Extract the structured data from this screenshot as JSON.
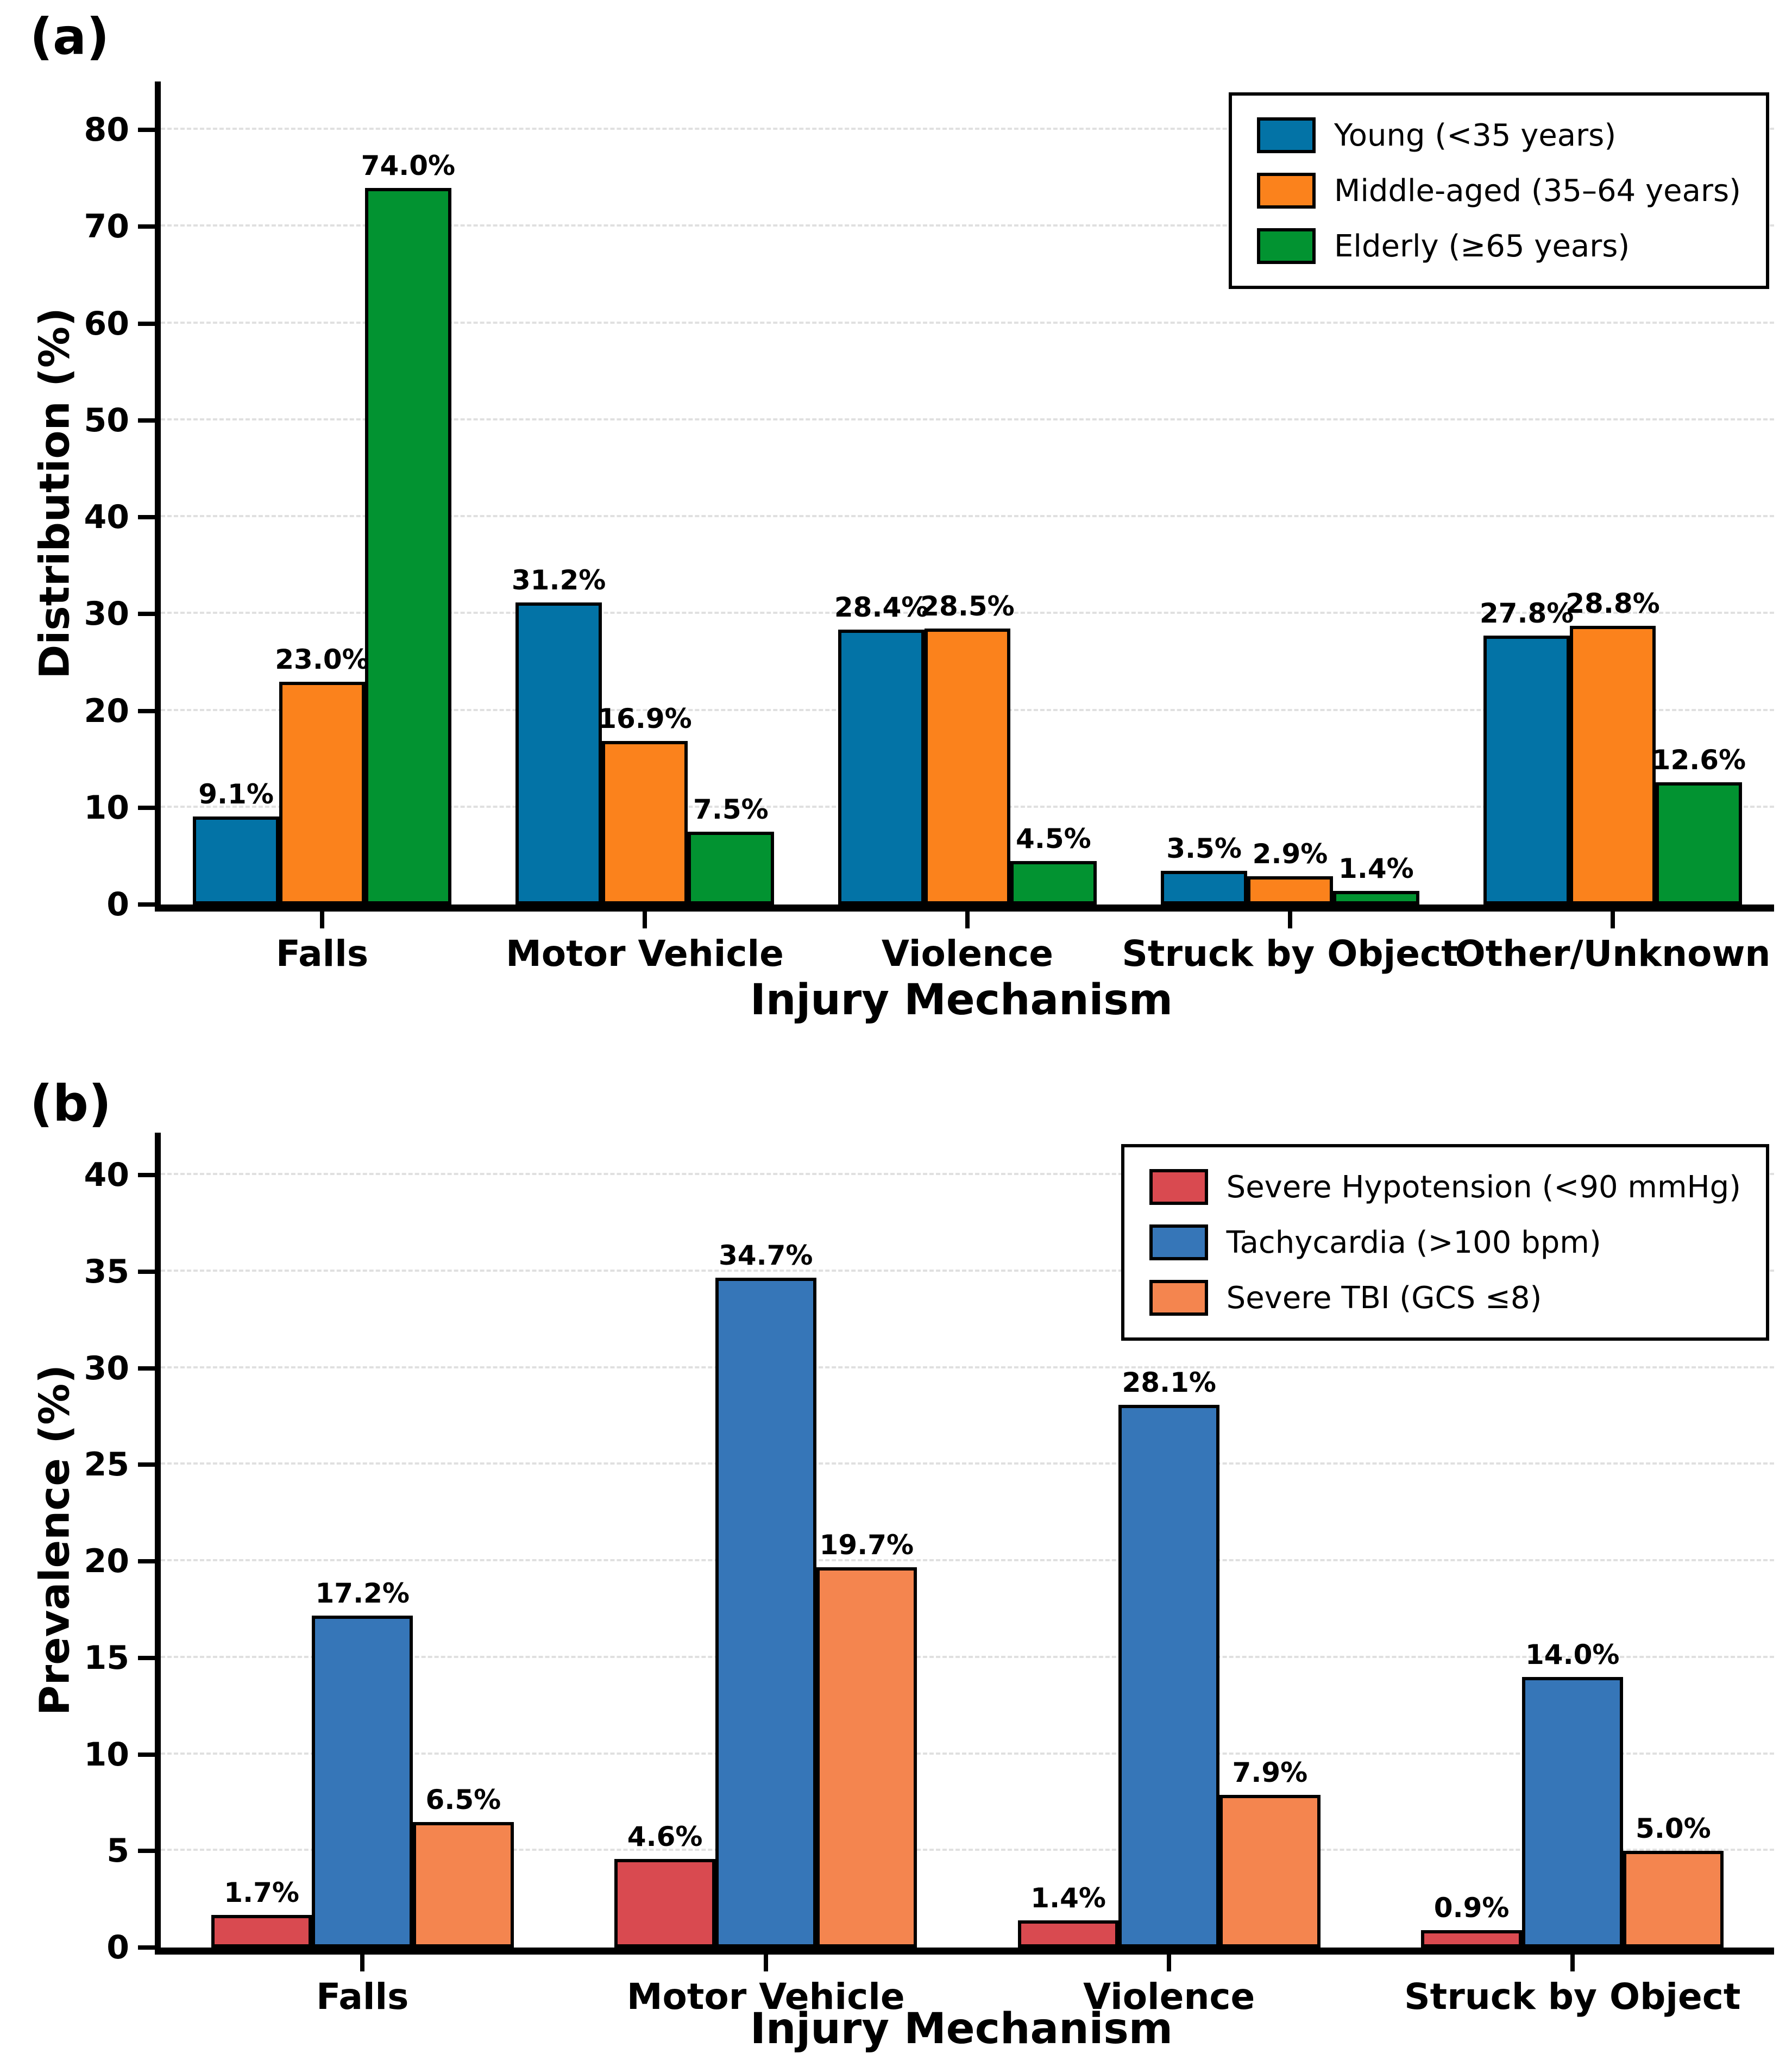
{
  "chart_data": [
    {
      "type": "bar",
      "panel_label": "(a)",
      "xlabel": "Injury Mechanism",
      "ylabel": "Distribution (%)",
      "categories": [
        "Falls",
        "Motor Vehicle",
        "Violence",
        "Struck by Object",
        "Other/Unknown"
      ],
      "series": [
        {
          "name": "Young (<35 years)",
          "color": "#0373a6",
          "values": [
            9.1,
            31.2,
            28.4,
            3.5,
            27.8
          ]
        },
        {
          "name": "Middle-aged (35–64 years)",
          "color": "#fb821c",
          "values": [
            23.0,
            16.9,
            28.5,
            2.9,
            28.8
          ]
        },
        {
          "name": "Elderly (≥65 years)",
          "color": "#029331",
          "values": [
            74.0,
            7.5,
            4.5,
            1.4,
            12.6
          ]
        }
      ],
      "yticks": [
        0,
        10,
        20,
        30,
        40,
        50,
        60,
        70,
        80
      ],
      "ylim": [
        0,
        85
      ],
      "value_suffix": "%",
      "value_decimals": 1,
      "grid": "horizontal dashed",
      "legend_position": "upper right"
    },
    {
      "type": "bar",
      "panel_label": "(b)",
      "xlabel": "Injury Mechanism",
      "ylabel": "Prevalence (%)",
      "categories": [
        "Falls",
        "Motor Vehicle",
        "Violence",
        "Struck by Object"
      ],
      "series": [
        {
          "name": "Severe Hypotension (<90 mmHg)",
          "color": "#d94a50",
          "values": [
            1.7,
            4.6,
            1.4,
            0.9
          ]
        },
        {
          "name": "Tachycardia (>100 bpm)",
          "color": "#3676b8",
          "values": [
            17.2,
            34.7,
            28.1,
            14.0
          ]
        },
        {
          "name": "Severe TBI (GCS ≤8)",
          "color": "#f4854f",
          "values": [
            6.5,
            19.7,
            7.9,
            5.0
          ]
        }
      ],
      "yticks": [
        0,
        5,
        10,
        15,
        20,
        25,
        30,
        35,
        40
      ],
      "ylim": [
        0,
        42.2
      ],
      "value_suffix": "%",
      "value_decimals": 1,
      "grid": "horizontal dashed",
      "legend_position": "upper right"
    }
  ]
}
